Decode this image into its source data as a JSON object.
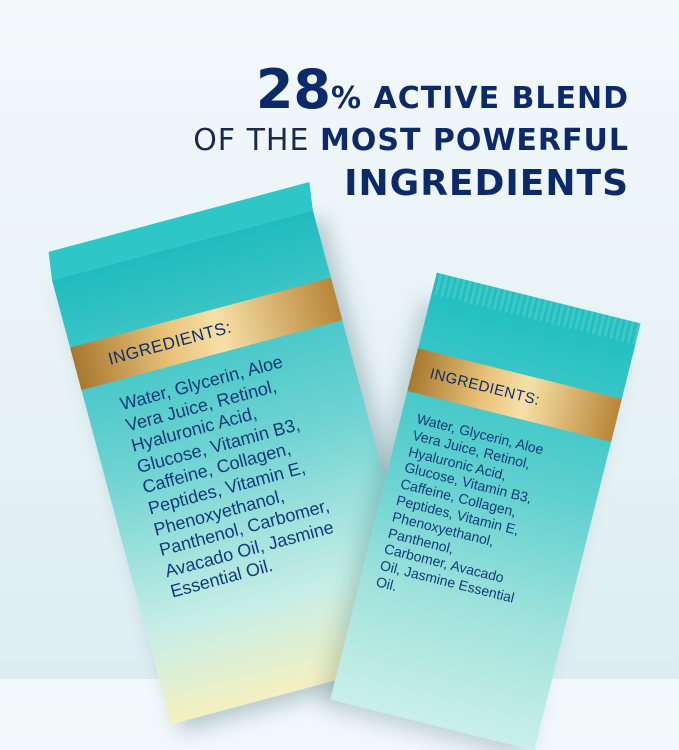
{
  "headline": {
    "number": "28",
    "percent": "%",
    "line1_rest": "ACTIVE BLEND",
    "line2_light": "OF THE",
    "line2_bold": "MOST POWERFUL",
    "line3": "INGREDIENTS"
  },
  "box": {
    "label": "INGREDIENTS:",
    "ingredients": "Water, Glycerin, Aloe\nVera Juice, Retinol,\nHyaluronic Acid,\nGlucose, Vitamin B3,\nCaffeine, Collagen,\nPeptides, Vitamin E,\nPhenoxyethanol,\nPanthenol, Carbomer,\nAvacado Oil, Jasmine\nEssential Oil."
  },
  "tube": {
    "label": "INGREDIENTS:",
    "ingredients": "Water, Glycerin, Aloe\nVera Juice, Retinol,\nHyaluronic Acid,\nGlucose, Vitamin B3,\nCaffeine, Collagen,\nPeptides, Vitamin E,\nPhenoxyethanol,\nPanthenol,\nCarbomer, Avacado\nOil, Jasmine Essential\nOil."
  },
  "colors": {
    "navy": "#0c2a6a",
    "teal": "#1fbcbf",
    "gold": "#e8c27a"
  }
}
